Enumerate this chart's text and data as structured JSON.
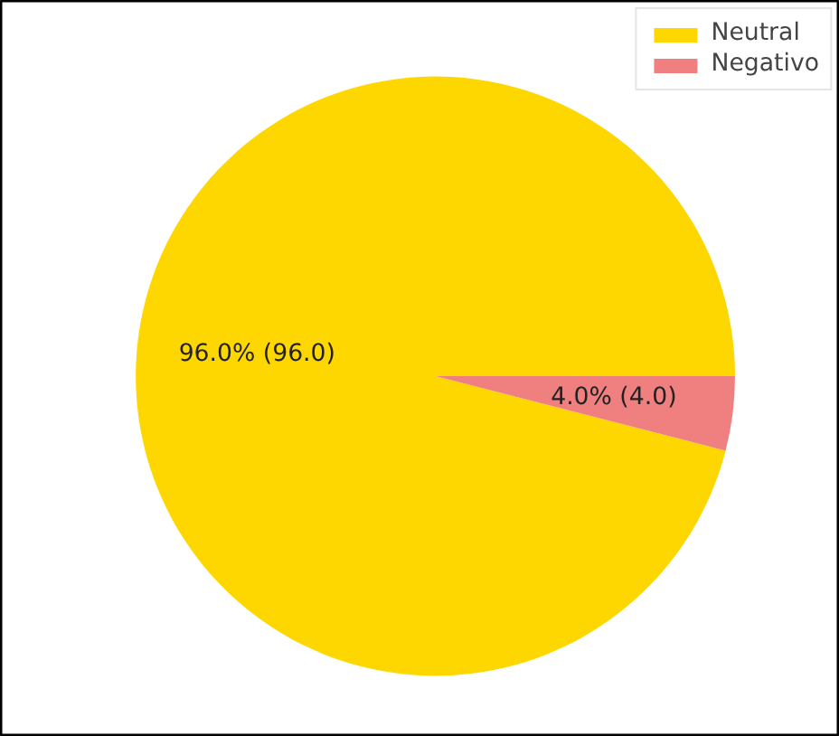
{
  "chart_data": {
    "type": "pie",
    "categories": [
      "Neutral",
      "Negativo"
    ],
    "values": [
      96,
      4
    ],
    "colors": [
      "#ffd700",
      "#f08080"
    ],
    "value_labels": [
      "96.0% (96.0)",
      "4.0% (4.0)"
    ],
    "legend": "top right"
  }
}
